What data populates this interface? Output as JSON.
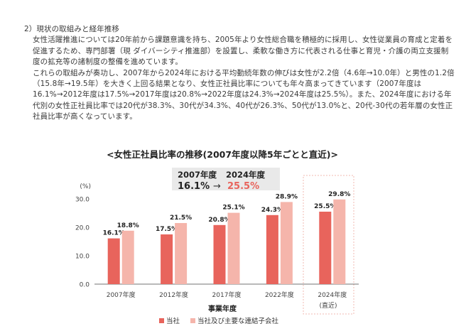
{
  "section": {
    "heading": "2）現状の取組みと経年推移",
    "paragraph1": "女性活躍推進については20年前から課題意識を持ち、2005年より女性総合職を積極的に採用し、女性従業員の育成と定着を促進するため、専門部署（現 ダイバーシティ推進部）を設置し、柔軟な働き方に代表される仕事と育児・介護の両立支援制度の拡充等の諸制度の整備を進めています。",
    "paragraph2": "これらの取組みが奏功し、2007年から2024年における平均勤続年数の伸びは女性が2.2倍（4.6年→10.0年）と男性の1.2倍（15.8年→19.5年）を大きく上回る結果となり、女性正社員比率についても年々高まってきています（2007年度は16.1%→2012年度は17.5%→2017年度は20.8%→2022年度は24.3%→2024年度は25.5%）。また、2024年度における年代別の女性正社員比率では20代が38.3%、30代が34.3%、40代が26.3%、50代が13.0%と、20代-30代の若年層の女性正社員比率が高くなっています。"
  },
  "highlight": {
    "label_from": "2007年度",
    "label_to": "2024年度",
    "value_from": "16.1%",
    "arrow": "→",
    "value_to": "25.5%"
  },
  "chart_data": {
    "type": "bar",
    "title": "<女性正社員比率の推移(2007年度以降5年ごとと直近)>",
    "unit_label": "(%)",
    "xlabel": "事業年度",
    "ylabel": "",
    "categories": [
      "2007年度",
      "2012年度",
      "2017年度",
      "2022年度",
      "2024年度"
    ],
    "category_note": "(直近)",
    "ylim": [
      0,
      30
    ],
    "yticks": [
      "0.0",
      "10.0",
      "20.0",
      "30.0"
    ],
    "grid": false,
    "legend_position": "bottom",
    "series": [
      {
        "name": "当社",
        "color": "#e8645c",
        "values": [
          16.1,
          17.5,
          20.8,
          24.3,
          25.5
        ],
        "labels": [
          "16.1%",
          "17.5%",
          "20.8%",
          "24.3%",
          "25.5%"
        ]
      },
      {
        "name": "当社及び主要な連結子会社",
        "color": "#f5b5ab",
        "values": [
          18.8,
          21.5,
          25.1,
          28.9,
          29.8
        ],
        "labels": [
          "18.8%",
          "21.5%",
          "25.1%",
          "28.9%",
          "29.8%"
        ]
      }
    ],
    "accent_color": "#e8645c",
    "highlight_box_color": "#e9e9e9"
  }
}
